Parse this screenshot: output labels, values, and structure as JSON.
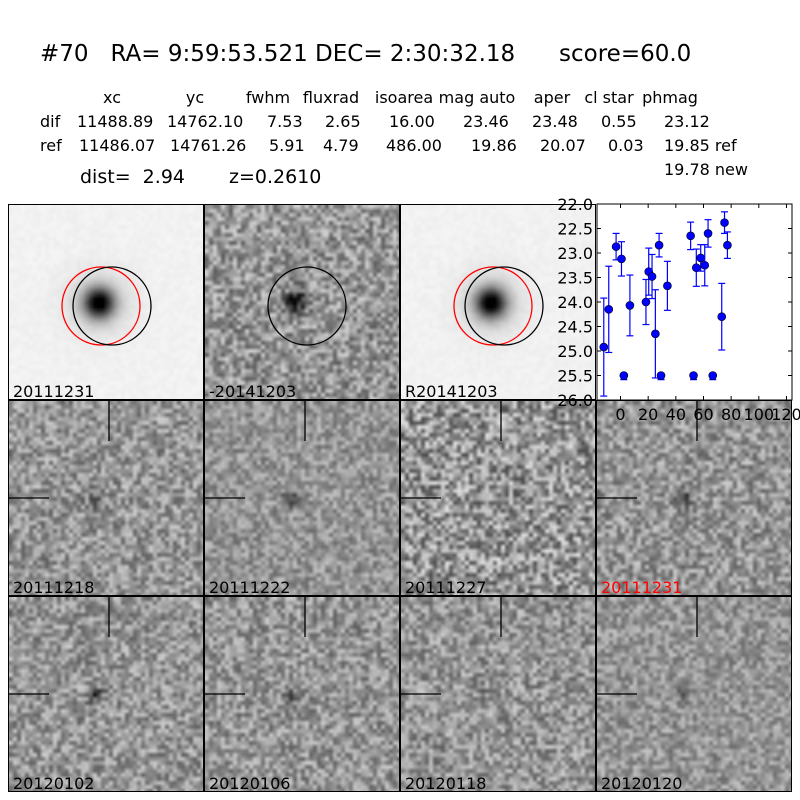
{
  "title": "#70   RA= 9:59:53.521 DEC= 2:30:32.18      score=60.0",
  "table": {
    "headers": [
      "xc",
      "yc",
      "fwhm",
      "fluxrad",
      "isoarea",
      "mag auto",
      "aper",
      "cl star",
      "phmag"
    ],
    "rows": [
      {
        "label": "dif",
        "values": [
          "11488.89",
          "14762.10",
          "7.53",
          "2.65",
          "16.00",
          "23.46",
          "23.48",
          "0.55",
          "23.12"
        ]
      },
      {
        "label": "ref",
        "values": [
          "11486.07",
          "14761.26",
          "5.91",
          "4.79",
          "486.00",
          "19.86",
          "20.07",
          "0.03",
          "19.85 ref"
        ]
      }
    ],
    "extra": "19.78 new"
  },
  "dist": "dist=  2.94",
  "z": "z=0.2610",
  "stamps": [
    {
      "label": "20111231",
      "type": "template",
      "circles": [
        "red",
        "black"
      ]
    },
    {
      "label": "-20141203",
      "type": "difference",
      "circles": [
        "black"
      ]
    },
    {
      "label": "R20141203",
      "type": "template",
      "circles": [
        "red",
        "black"
      ]
    },
    {
      "label": "20111218",
      "type": "epoch"
    },
    {
      "label": "20111222",
      "type": "epoch"
    },
    {
      "label": "20111227",
      "type": "epoch"
    },
    {
      "label": "20111231",
      "type": "epoch",
      "label_color": "#ff0000"
    },
    {
      "label": "20120102",
      "type": "epoch"
    },
    {
      "label": "20120106",
      "type": "epoch"
    },
    {
      "label": "20120118",
      "type": "epoch"
    },
    {
      "label": "20120120",
      "type": "epoch"
    }
  ],
  "chart_data": {
    "type": "scatter",
    "color": "#0000ff",
    "ylim": [
      26.0,
      22.0
    ],
    "xlim": [
      -17,
      124
    ],
    "y_inverted": true,
    "yticks": [
      "22.0",
      "22.5",
      "23.0",
      "23.5",
      "24.0",
      "24.5",
      "25.0",
      "25.5",
      "26.0"
    ],
    "xticks": [
      "0",
      "20",
      "40",
      "60",
      "80",
      "100",
      "120"
    ],
    "points": [
      {
        "x": -12.1,
        "y": 24.92,
        "err": 1.0
      },
      {
        "x": -8.5,
        "y": 24.15,
        "err": 0.88
      },
      {
        "x": -3.2,
        "y": 22.87,
        "err": 0.27
      },
      {
        "x": 0.7,
        "y": 23.12,
        "err": 0.35
      },
      {
        "x": 2.4,
        "y": 25.5,
        "limit": true
      },
      {
        "x": 6.8,
        "y": 24.07,
        "err": 0.62
      },
      {
        "x": 18.4,
        "y": 24.0,
        "err": 0.46
      },
      {
        "x": 20.4,
        "y": 23.38,
        "err": 0.48
      },
      {
        "x": 22.8,
        "y": 23.48,
        "err": 0.45
      },
      {
        "x": 25.2,
        "y": 24.65,
        "err": 0.9
      },
      {
        "x": 27.9,
        "y": 22.84,
        "err": 0.24
      },
      {
        "x": 29.3,
        "y": 25.5,
        "limit": true
      },
      {
        "x": 33.9,
        "y": 23.67,
        "err": 0.5
      },
      {
        "x": 50.7,
        "y": 22.65,
        "err": 0.28
      },
      {
        "x": 52.8,
        "y": 25.5,
        "limit": true
      },
      {
        "x": 54.8,
        "y": 23.3,
        "err": 0.38
      },
      {
        "x": 58.0,
        "y": 23.1,
        "err": 0.27
      },
      {
        "x": 60.9,
        "y": 23.25,
        "err": 0.42
      },
      {
        "x": 63.3,
        "y": 22.6,
        "err": 0.28
      },
      {
        "x": 66.7,
        "y": 25.5,
        "limit": true
      },
      {
        "x": 73.2,
        "y": 24.3,
        "err": 0.68
      },
      {
        "x": 75.2,
        "y": 22.38,
        "err": 0.22
      },
      {
        "x": 77.3,
        "y": 22.84,
        "err": 0.27
      }
    ]
  }
}
